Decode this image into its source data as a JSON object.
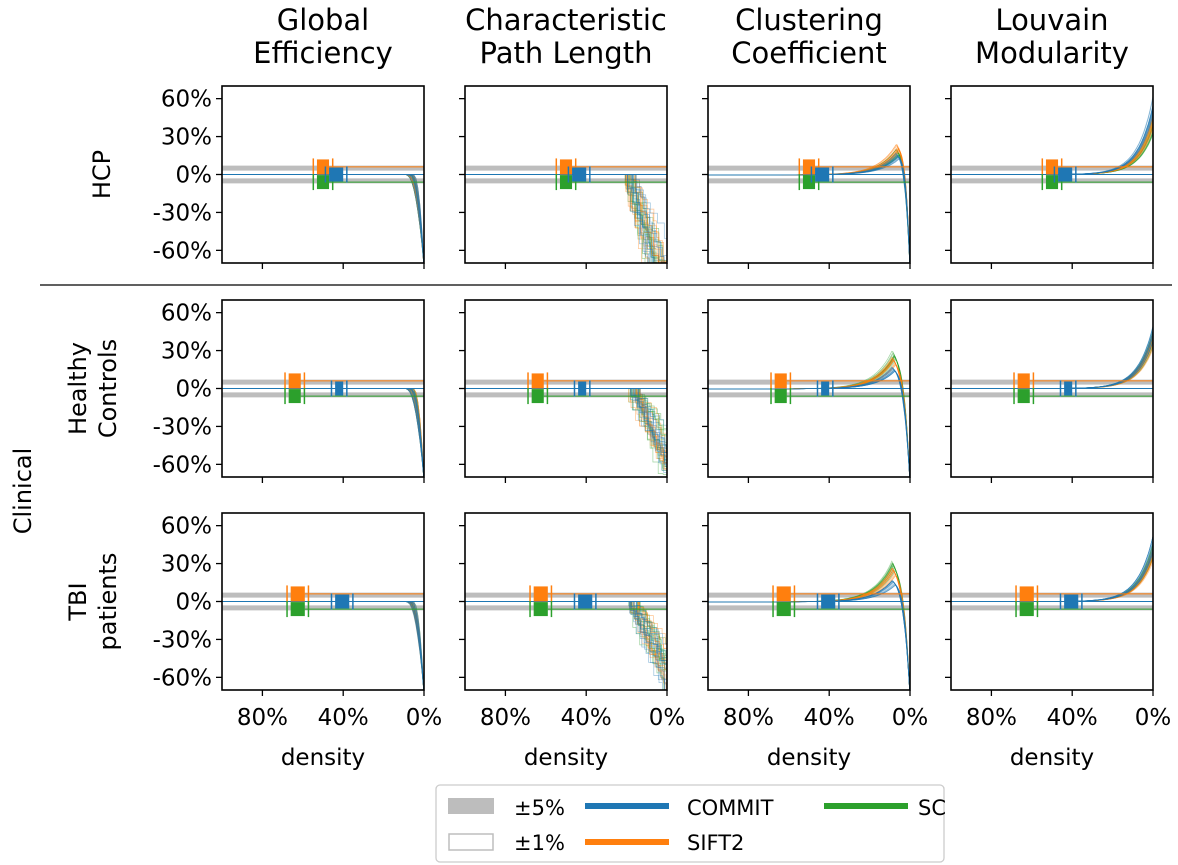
{
  "colors": {
    "band": "#bdbdbd",
    "commit": "#1f77b4",
    "sift2": "#ff7f0e",
    "sc": "#2ca02c"
  },
  "figure": {
    "column_titles": [
      [
        "Global",
        "Efficiency"
      ],
      [
        "Characteristic",
        "Path Length"
      ],
      [
        "Clustering",
        "Coefficient"
      ],
      [
        "Louvain",
        "Modularity"
      ]
    ],
    "row_labels": [
      [
        "HCP"
      ],
      [
        "Healthy",
        "Controls"
      ],
      [
        "TBI",
        "patients"
      ]
    ],
    "group_label": "Clinical",
    "xlabel": "density",
    "xticks": [
      "80%",
      "40%",
      "0%"
    ],
    "yticks": [
      "60%",
      "30%",
      "0%",
      "-30%",
      "-60%"
    ]
  },
  "legend": {
    "items": [
      {
        "label": "±5%",
        "kind": "band"
      },
      {
        "label": "±1%",
        "kind": "outline"
      },
      {
        "label": "COMMIT",
        "kind": "commit"
      },
      {
        "label": "SIFT2",
        "kind": "sift2"
      },
      {
        "label": "SC",
        "kind": "sc"
      }
    ]
  },
  "chart_data": {
    "type": "line",
    "xlabel": "density",
    "ylabel": "",
    "xlim": [
      100,
      0
    ],
    "ylim": [
      -70,
      70
    ],
    "x_ticks": [
      80,
      40,
      0
    ],
    "y_ticks": [
      60,
      30,
      0,
      -30,
      -60
    ],
    "series_names": [
      "COMMIT",
      "SIFT2",
      "SC"
    ],
    "reference_bands": [
      "±5%",
      "±1%"
    ],
    "panels": [
      {
        "row": "HCP",
        "col": "Global Efficiency",
        "type": "decline",
        "start": 4,
        "drop": -72,
        "markers": {
          "sift2": [
            53,
            47
          ],
          "sc": [
            53,
            47
          ],
          "commit": [
            47,
            40
          ]
        }
      },
      {
        "row": "HCP",
        "col": "Characteristic Path Length",
        "type": "steps",
        "start": 18,
        "low": -72,
        "markers": {
          "sift2": [
            53,
            47
          ],
          "sc": [
            53,
            47
          ],
          "commit": [
            47,
            40
          ]
        }
      },
      {
        "row": "HCP",
        "col": "Clustering Coefficient",
        "type": "peak",
        "peakX": 6,
        "peaks": {
          "sift2": 22,
          "commit": 15,
          "sc": 18
        },
        "markers": {
          "sift2": [
            53,
            47
          ],
          "sc": [
            53,
            47
          ],
          "commit": [
            47,
            40
          ]
        }
      },
      {
        "row": "HCP",
        "col": "Louvain Modularity",
        "type": "rise",
        "ends": {
          "commit": 55,
          "sift2": 42,
          "sc": 38
        },
        "markers": {
          "sift2": [
            53,
            47
          ],
          "sc": [
            53,
            47
          ],
          "commit": [
            47,
            40
          ]
        }
      },
      {
        "row": "Healthy Controls",
        "col": "Global Efficiency",
        "type": "decline",
        "start": 7,
        "drop": -72,
        "markers": {
          "sift2": [
            67,
            61
          ],
          "sc": [
            67,
            61
          ],
          "commit": [
            44,
            40
          ]
        }
      },
      {
        "row": "Healthy Controls",
        "col": "Characteristic Path Length",
        "type": "steps",
        "start": 16,
        "low": -68,
        "markers": {
          "sift2": [
            67,
            61
          ],
          "sc": [
            67,
            61
          ],
          "commit": [
            44,
            40
          ]
        }
      },
      {
        "row": "Healthy Controls",
        "col": "Clustering Coefficient",
        "type": "peak",
        "peakX": 8,
        "peaks": {
          "sift2": 22,
          "commit": 15,
          "sc": 27
        },
        "markers": {
          "sift2": [
            67,
            61
          ],
          "sc": [
            67,
            61
          ],
          "commit": [
            44,
            40
          ]
        }
      },
      {
        "row": "Healthy Controls",
        "col": "Louvain Modularity",
        "type": "rise",
        "ends": {
          "commit": 45,
          "sift2": 38,
          "sc": 40
        },
        "markers": {
          "sift2": [
            67,
            61
          ],
          "sc": [
            67,
            61
          ],
          "commit": [
            44,
            40
          ]
        }
      },
      {
        "row": "TBI patients",
        "col": "Global Efficiency",
        "type": "decline",
        "start": 7,
        "drop": -72,
        "markers": {
          "sift2": [
            66,
            59
          ],
          "sc": [
            66,
            59
          ],
          "commit": [
            44,
            37
          ]
        }
      },
      {
        "row": "TBI patients",
        "col": "Characteristic Path Length",
        "type": "steps",
        "start": 16,
        "low": -70,
        "markers": {
          "sift2": [
            66,
            59
          ],
          "sc": [
            66,
            59
          ],
          "commit": [
            44,
            37
          ]
        }
      },
      {
        "row": "TBI patients",
        "col": "Clustering Coefficient",
        "type": "peak",
        "peakX": 8,
        "peaks": {
          "sift2": 24,
          "commit": 15,
          "sc": 28
        },
        "markers": {
          "sift2": [
            66,
            59
          ],
          "sc": [
            66,
            59
          ],
          "commit": [
            44,
            37
          ]
        }
      },
      {
        "row": "TBI patients",
        "col": "Louvain Modularity",
        "type": "rise",
        "ends": {
          "commit": 45,
          "sift2": 38,
          "sc": 40
        },
        "markers": {
          "sift2": [
            66,
            59
          ],
          "sc": [
            66,
            59
          ],
          "commit": [
            44,
            37
          ]
        }
      }
    ]
  }
}
